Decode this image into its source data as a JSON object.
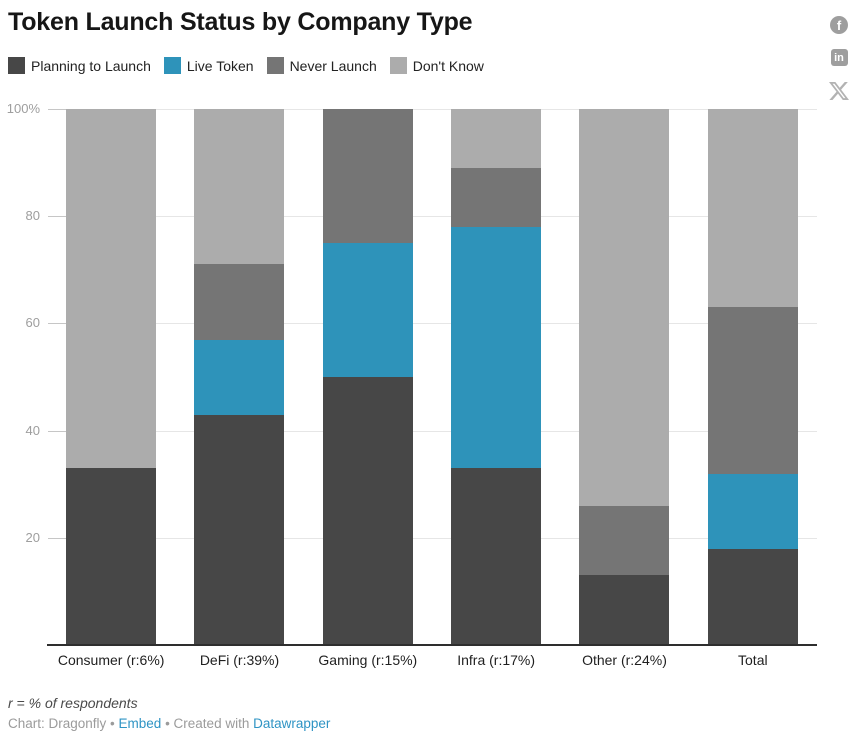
{
  "header": {
    "title": "Token Launch Status by Company Type"
  },
  "social": {
    "icons": [
      "facebook-icon",
      "linkedin-icon",
      "x-icon"
    ],
    "facebook_glyph": "f",
    "linkedin_glyph": "in"
  },
  "chart_data": {
    "type": "bar",
    "stacked": true,
    "unit": "%",
    "title": "Token Launch Status by Company Type",
    "categories": [
      "Consumer (r:6%)",
      "DeFi (r:39%)",
      "Gaming (r:15%)",
      "Infra (r:17%)",
      "Other (r:24%)",
      "Total"
    ],
    "series": [
      {
        "name": "Planning to Launch",
        "color": "#474747",
        "values": [
          33,
          43,
          50,
          33,
          13,
          18
        ]
      },
      {
        "name": "Live Token",
        "color": "#2e93ba",
        "values": [
          0,
          14,
          25,
          45,
          0,
          14
        ]
      },
      {
        "name": "Never Launch",
        "color": "#757575",
        "values": [
          0,
          14,
          25,
          11,
          13,
          31
        ]
      },
      {
        "name": "Don't Know",
        "color": "#acacac",
        "values": [
          67,
          29,
          0,
          11,
          74,
          37
        ]
      }
    ],
    "ylim": [
      0,
      100
    ],
    "yticks": [
      {
        "value": 100,
        "label": "100%"
      },
      {
        "value": 80,
        "label": "80"
      },
      {
        "value": 60,
        "label": "60"
      },
      {
        "value": 40,
        "label": "40"
      },
      {
        "value": 20,
        "label": "20"
      }
    ],
    "grid": true,
    "legend_position": "top"
  },
  "footer": {
    "note": "r = % of respondents",
    "credit": [
      {
        "text": "Chart: Dragonfly",
        "link": false,
        "name": "credit-source"
      },
      {
        "text": " • ",
        "link": false,
        "name": "credit-separator"
      },
      {
        "text": "Embed",
        "link": true,
        "name": "embed-link"
      },
      {
        "text": " • ",
        "link": false,
        "name": "credit-separator"
      },
      {
        "text": "Created with ",
        "link": false,
        "name": "credit-created-with"
      },
      {
        "text": "Datawrapper",
        "link": true,
        "name": "datawrapper-link"
      }
    ]
  }
}
